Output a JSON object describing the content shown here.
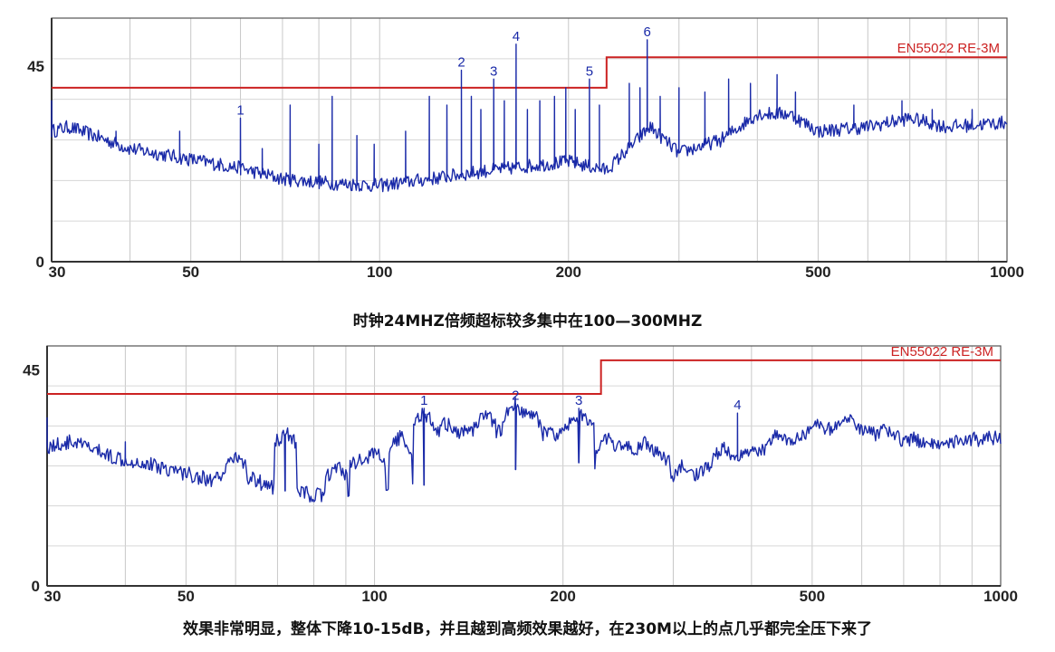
{
  "chart_data": [
    {
      "type": "line",
      "x_scale": "log",
      "xlim": [
        30,
        1000
      ],
      "ylim": [
        0,
        56
      ],
      "x_ticks": [
        30,
        50,
        100,
        200,
        500,
        1000
      ],
      "x_tick_labels": [
        "30",
        "50",
        "100",
        "200",
        "500",
        "1000"
      ],
      "y_ticks": [
        0,
        45
      ],
      "y_tick_labels": [
        "0",
        "45"
      ],
      "grid": true,
      "limit_line": {
        "label": "EN55022 RE-3M",
        "color": "#cc2222",
        "points": [
          [
            30,
            40
          ],
          [
            230,
            40
          ],
          [
            230,
            47
          ],
          [
            1000,
            47
          ]
        ]
      },
      "series": [
        {
          "color": "#1a2aa8",
          "baseline": [
            [
              30,
              30
            ],
            [
              32,
              31
            ],
            [
              35,
              29
            ],
            [
              40,
              26
            ],
            [
              50,
              23.5
            ],
            [
              60,
              21.5
            ],
            [
              70,
              19
            ],
            [
              85,
              18
            ],
            [
              100,
              17.5
            ],
            [
              120,
              19
            ],
            [
              150,
              21
            ],
            [
              200,
              23
            ],
            [
              230,
              21
            ],
            [
              270,
              31
            ],
            [
              300,
              25
            ],
            [
              350,
              28
            ],
            [
              400,
              34
            ],
            [
              450,
              34
            ],
            [
              500,
              30
            ],
            [
              600,
              31
            ],
            [
              700,
              33
            ],
            [
              800,
              31
            ],
            [
              1000,
              32
            ]
          ],
          "spikes": [
            [
              30,
              37
            ],
            [
              38,
              30
            ],
            [
              48,
              30
            ],
            [
              60,
              33
            ],
            [
              65,
              26
            ],
            [
              72,
              36
            ],
            [
              80,
              27
            ],
            [
              84,
              38
            ],
            [
              92,
              29
            ],
            [
              98,
              27
            ],
            [
              110,
              30
            ],
            [
              120,
              38
            ],
            [
              128,
              36
            ],
            [
              135,
              44
            ],
            [
              140,
              38
            ],
            [
              145,
              35
            ],
            [
              152,
              42
            ],
            [
              158,
              37
            ],
            [
              165,
              50
            ],
            [
              172,
              35
            ],
            [
              180,
              37
            ],
            [
              190,
              38
            ],
            [
              198,
              40
            ],
            [
              205,
              35
            ],
            [
              216,
              42
            ],
            [
              224,
              36
            ],
            [
              250,
              41
            ],
            [
              260,
              40
            ],
            [
              267,
              51
            ],
            [
              280,
              38
            ],
            [
              300,
              40
            ],
            [
              330,
              39
            ],
            [
              360,
              42
            ],
            [
              390,
              41
            ],
            [
              430,
              43
            ],
            [
              460,
              39
            ],
            [
              570,
              36
            ],
            [
              680,
              37
            ],
            [
              760,
              35
            ],
            [
              880,
              35
            ]
          ]
        }
      ],
      "markers": [
        {
          "label": "1",
          "x": 60,
          "y": 33
        },
        {
          "label": "2",
          "x": 135,
          "y": 44
        },
        {
          "label": "3",
          "x": 152,
          "y": 42
        },
        {
          "label": "4",
          "x": 165,
          "y": 50
        },
        {
          "label": "5",
          "x": 216,
          "y": 42
        },
        {
          "label": "6",
          "x": 267,
          "y": 51
        }
      ]
    },
    {
      "type": "line",
      "x_scale": "log",
      "xlim": [
        30,
        1000
      ],
      "ylim": [
        0,
        50
      ],
      "x_ticks": [
        30,
        50,
        100,
        200,
        500,
        1000
      ],
      "x_tick_labels": [
        "30",
        "50",
        "100",
        "200",
        "500",
        "1000"
      ],
      "y_ticks": [
        0,
        45
      ],
      "y_tick_labels": [
        "0",
        "45"
      ],
      "grid": true,
      "limit_line": {
        "label": "EN55022 RE-3M",
        "color": "#cc2222",
        "points": [
          [
            30,
            40
          ],
          [
            230,
            40
          ],
          [
            230,
            47
          ],
          [
            1000,
            47
          ]
        ]
      },
      "series": [
        {
          "color": "#1a2aa8",
          "baseline": [
            [
              30,
              29
            ],
            [
              33,
              30
            ],
            [
              38,
              27
            ],
            [
              45,
              25
            ],
            [
              55,
              22
            ],
            [
              62,
              23
            ],
            [
              70,
              20
            ],
            [
              80,
              19
            ],
            [
              90,
              18
            ],
            [
              100,
              19
            ],
            [
              120,
              21
            ],
            [
              150,
              23
            ],
            [
              180,
              25
            ],
            [
              230,
              26
            ],
            [
              260,
              22
            ],
            [
              300,
              21
            ],
            [
              350,
              25
            ],
            [
              400,
              28
            ],
            [
              450,
              30
            ],
            [
              500,
              32
            ],
            [
              560,
              33
            ],
            [
              650,
              31
            ],
            [
              800,
              30
            ],
            [
              1000,
              31
            ]
          ],
          "bumps": [
            [
              60,
              27
            ],
            [
              72,
              32
            ],
            [
              87,
              25
            ],
            [
              95,
              27
            ],
            [
              100,
              28
            ],
            [
              110,
              31
            ],
            [
              120,
              36
            ],
            [
              130,
              34
            ],
            [
              140,
              33
            ],
            [
              150,
              36
            ],
            [
              160,
              33
            ],
            [
              168,
              38
            ],
            [
              178,
              36
            ],
            [
              190,
              33
            ],
            [
              205,
              34
            ],
            [
              215,
              36
            ],
            [
              235,
              31
            ],
            [
              250,
              30
            ],
            [
              270,
              30
            ],
            [
              285,
              28
            ],
            [
              310,
              25
            ],
            [
              360,
              29
            ],
            [
              440,
              32
            ],
            [
              510,
              34
            ],
            [
              570,
              35
            ],
            [
              650,
              33
            ]
          ],
          "spikes": [
            [
              30,
              35
            ],
            [
              40,
              30
            ],
            [
              72,
              31
            ],
            [
              120,
              37
            ],
            [
              168,
              38
            ],
            [
              212,
              37
            ],
            [
              380,
              36
            ]
          ]
        }
      ],
      "markers": [
        {
          "label": "1",
          "x": 120,
          "y": 37
        },
        {
          "label": "2",
          "x": 168,
          "y": 38
        },
        {
          "label": "3",
          "x": 212,
          "y": 37
        },
        {
          "label": "4",
          "x": 380,
          "y": 36
        }
      ]
    }
  ],
  "captions": {
    "top": "时钟24MHZ倍频超标较多集中在100—300MHZ",
    "bottom": "效果非常明显，整体下降10-15dB，并且越到高频效果越好，在230M以上的点几乎都完全压下来了"
  }
}
